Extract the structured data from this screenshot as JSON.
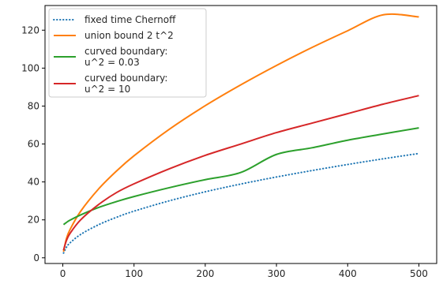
{
  "chart_data": {
    "type": "line",
    "title": "",
    "xlabel": "",
    "ylabel": "",
    "xlim": [
      -25,
      525
    ],
    "ylim": [
      -3,
      133
    ],
    "x_ticks": [
      0,
      100,
      200,
      300,
      400,
      500
    ],
    "y_ticks": [
      0,
      20,
      40,
      60,
      80,
      100,
      120
    ],
    "grid": false,
    "legend_position": "top-left",
    "x": [
      1,
      5,
      10,
      25,
      50,
      75,
      100,
      150,
      200,
      250,
      300,
      350,
      400,
      450,
      500
    ],
    "series": [
      {
        "name": "fixed time Chernoff",
        "style": "dotted",
        "color": "#1f77b4",
        "values": [
          2.5,
          5.5,
          7.8,
          12.3,
          17.4,
          21.3,
          24.6,
          30.1,
          34.8,
          38.9,
          42.6,
          46.0,
          49.2,
          52.2,
          55.0
        ]
      },
      {
        "name": "union bound 2 t^2",
        "style": "solid",
        "color": "#ff7f0e",
        "values": [
          3.2,
          10.0,
          14.8,
          24.5,
          36.2,
          45.6,
          53.8,
          67.9,
          80.2,
          91.2,
          101.4,
          110.9,
          119.7,
          128.1,
          127.0
        ]
      },
      {
        "name": "curved boundary:\nu^2 = 0.03",
        "lines": [
          "curved boundary:",
          "u^2 = 0.03"
        ],
        "style": "solid",
        "color": "#2ca02c",
        "values": [
          17.5,
          18.6,
          19.8,
          22.6,
          26.5,
          29.6,
          32.3,
          37.0,
          41.2,
          45.0,
          54.5,
          58.0,
          62.0,
          65.3,
          68.5
        ]
      },
      {
        "name": "curved boundary:\nu^2 = 10",
        "lines": [
          "curved boundary:",
          "u^2 = 10"
        ],
        "style": "solid",
        "color": "#d62728",
        "values": [
          4.0,
          9.0,
          12.8,
          20.0,
          28.0,
          34.3,
          39.0,
          47.0,
          54.0,
          60.0,
          66.0,
          71.0,
          76.0,
          81.0,
          85.5
        ]
      }
    ]
  }
}
